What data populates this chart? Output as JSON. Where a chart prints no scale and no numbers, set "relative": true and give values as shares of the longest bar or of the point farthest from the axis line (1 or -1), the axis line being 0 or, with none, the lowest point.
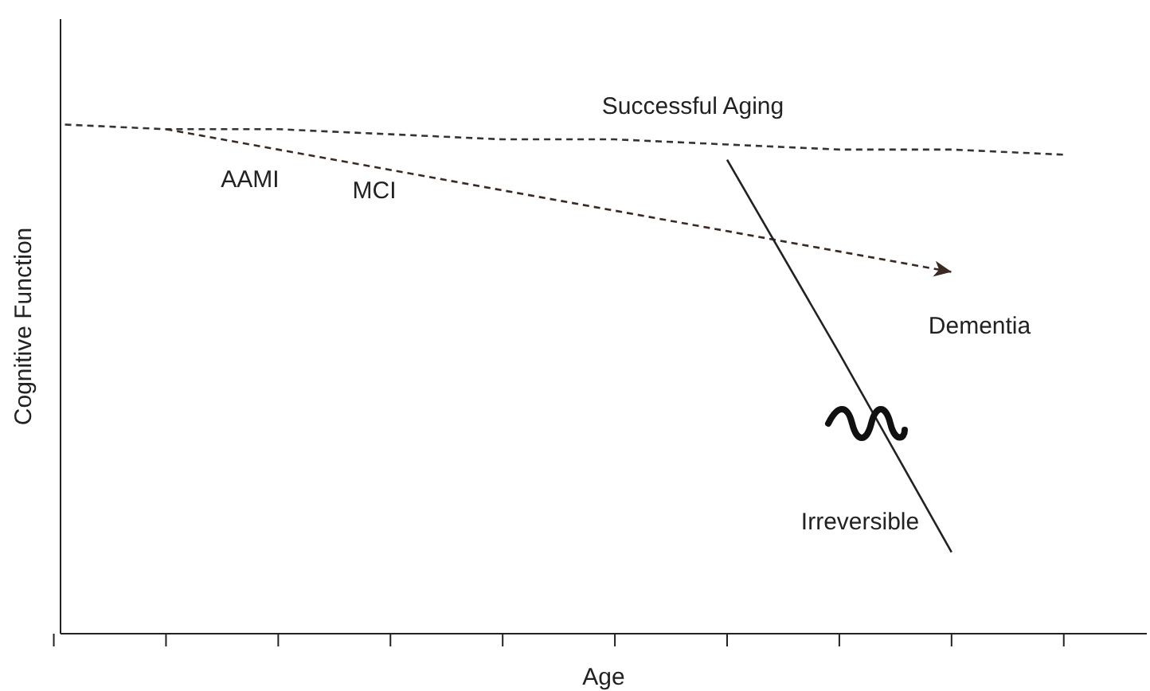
{
  "chart_data": {
    "type": "line",
    "relative": true,
    "xlabel": "Age",
    "ylabel": "Cognitive Function",
    "marker": "none",
    "categories": [
      null,
      null,
      null,
      null,
      null,
      null,
      null,
      null,
      null,
      null
    ],
    "series": [
      {
        "color": "#333333",
        "line_style": "dashed",
        "values": [
          1,
          0.99,
          0.99,
          0.98,
          0.97,
          0.97,
          0.96,
          0.95,
          0.95,
          0.94
        ]
      },
      {
        "color": "#3a2a22",
        "line_style": "dashed",
        "values": [
          null,
          0.99,
          0.95,
          0.91,
          0.87,
          0.83,
          0.79,
          0.75,
          0.71,
          null
        ]
      },
      {
        "color": "#222222",
        "line_style": "solid",
        "values": [
          null,
          null,
          null,
          null,
          null,
          null,
          0.93,
          0.55,
          0.16,
          null
        ]
      }
    ],
    "annotations": [
      "Successful Aging",
      "AAMI",
      "MCI",
      "Dementia",
      "Irreversible"
    ]
  }
}
